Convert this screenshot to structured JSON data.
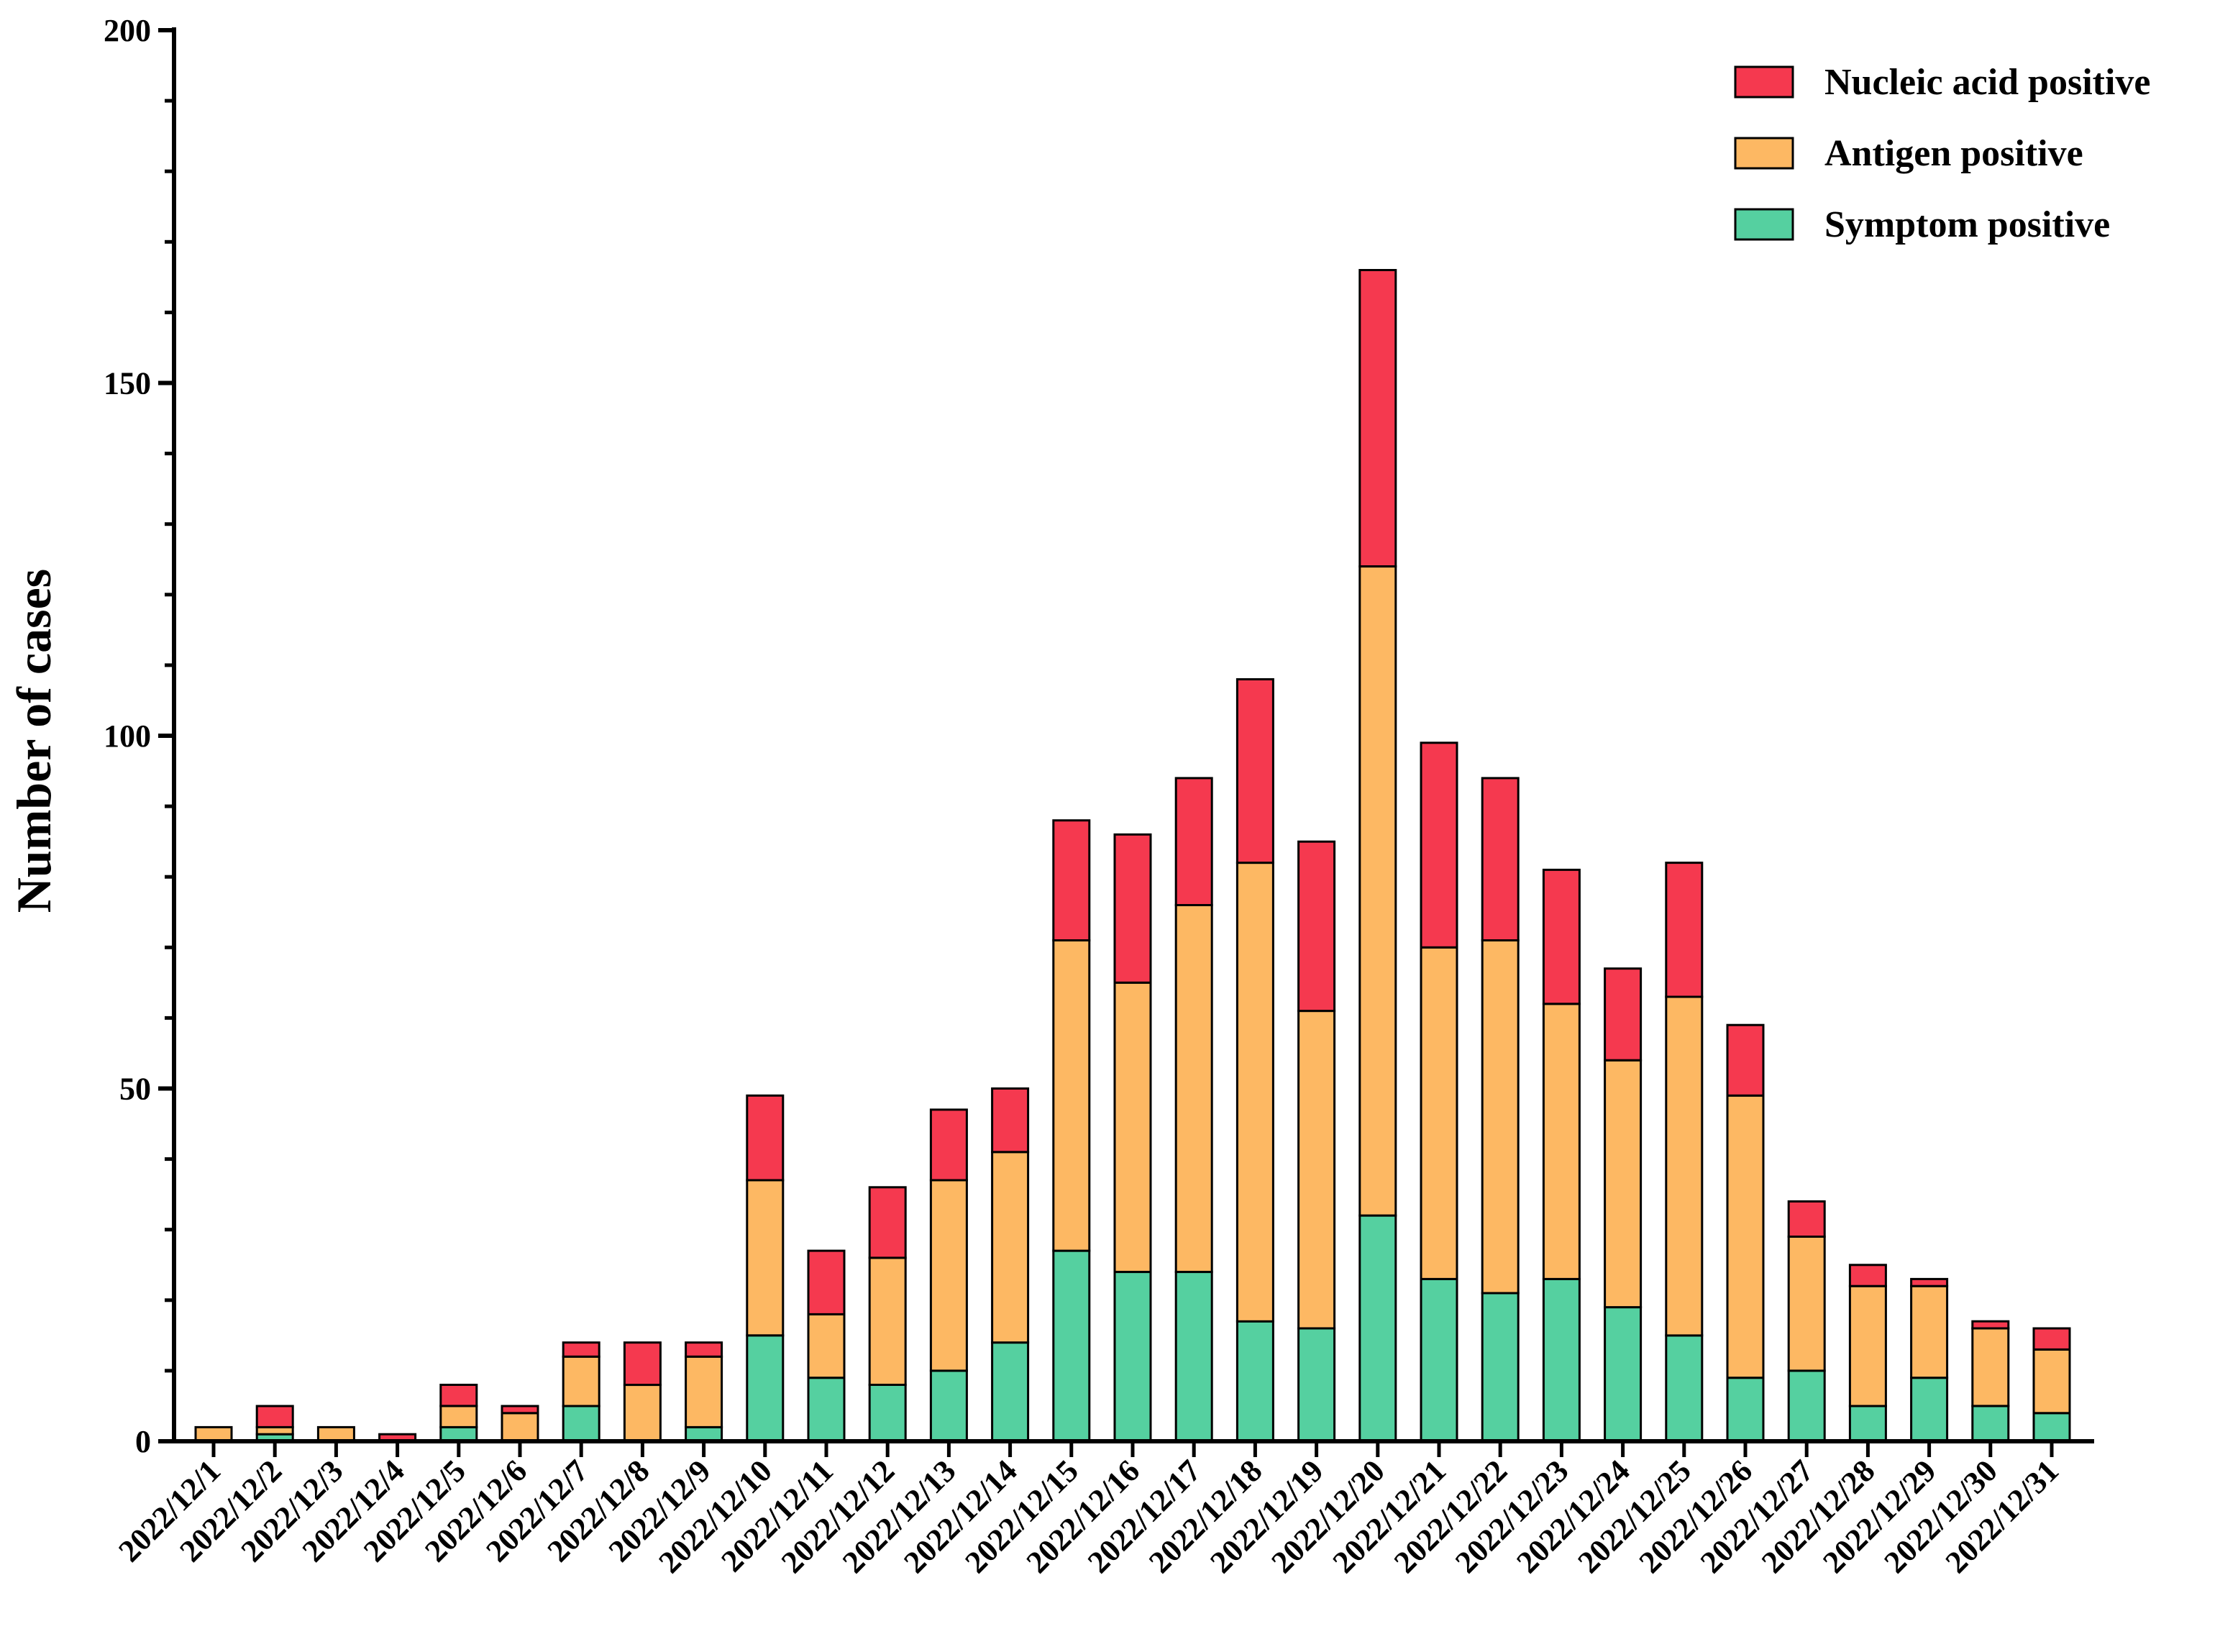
{
  "chart_data": {
    "type": "bar",
    "stacked": true,
    "title": "",
    "xlabel": "",
    "ylabel": "Number of cases",
    "ylim": [
      0,
      200
    ],
    "yticks": [
      0,
      50,
      100,
      150,
      200
    ],
    "legend_position": "top-right",
    "categories": [
      "2022/12/1",
      "2022/12/2",
      "2022/12/3",
      "2022/12/4",
      "2022/12/5",
      "2022/12/6",
      "2022/12/7",
      "2022/12/8",
      "2022/12/9",
      "2022/12/10",
      "2022/12/11",
      "2022/12/12",
      "2022/12/13",
      "2022/12/14",
      "2022/12/15",
      "2022/12/16",
      "2022/12/17",
      "2022/12/18",
      "2022/12/19",
      "2022/12/20",
      "2022/12/21",
      "2022/12/22",
      "2022/12/23",
      "2022/12/24",
      "2022/12/25",
      "2022/12/26",
      "2022/12/27",
      "2022/12/28",
      "2022/12/29",
      "2022/12/30",
      "2022/12/31"
    ],
    "series": [
      {
        "name": "Symptom positive",
        "color": "#55d0a0",
        "values": [
          0,
          1,
          0,
          0,
          2,
          0,
          5,
          0,
          2,
          15,
          9,
          8,
          10,
          14,
          27,
          24,
          24,
          17,
          16,
          32,
          23,
          21,
          23,
          19,
          15,
          9,
          10,
          5,
          9,
          5,
          4
        ]
      },
      {
        "name": "Antigen positive",
        "color": "#fdb863",
        "values": [
          2,
          1,
          2,
          0,
          3,
          4,
          7,
          8,
          10,
          22,
          9,
          18,
          27,
          27,
          44,
          41,
          52,
          65,
          45,
          92,
          47,
          50,
          39,
          35,
          48,
          40,
          19,
          17,
          13,
          11,
          9
        ]
      },
      {
        "name": "Nucleic acid positive",
        "color": "#f5394f",
        "values": [
          0,
          3,
          0,
          1,
          3,
          1,
          2,
          6,
          2,
          12,
          9,
          10,
          10,
          9,
          17,
          21,
          18,
          26,
          24,
          42,
          29,
          23,
          19,
          13,
          19,
          10,
          5,
          3,
          1,
          1,
          3
        ]
      }
    ],
    "legend_order": [
      "Nucleic acid positive",
      "Antigen positive",
      "Symptom positive"
    ]
  }
}
